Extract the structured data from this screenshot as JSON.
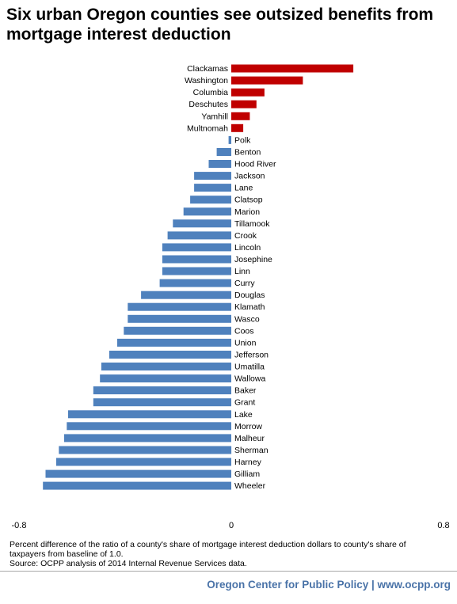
{
  "title": "Six urban Oregon counties see outsized benefits from mortgage interest deduction",
  "note_line1": "Percent difference of the ratio of a county's share of mortgage interest deduction dollars to county's share of taxpayers from baseline of 1.0.",
  "note_line2": "Source: OCPP  analysis of 2014 Internal Revenue Services data.",
  "footer": "Oregon Center for Public Policy | www.ocpp.org",
  "colors": {
    "positive": "#c00000",
    "negative": "#4f81bd"
  },
  "chart_data": {
    "type": "bar",
    "orientation": "horizontal",
    "xlim": [
      -0.8,
      0.8
    ],
    "x_ticks": [
      "-0.8",
      "0",
      "0.8"
    ],
    "grid": false,
    "categories": [
      "Clackamas",
      "Washington",
      "Columbia",
      "Deschutes",
      "Yamhill",
      "Multnomah",
      "Polk",
      "Benton",
      "Hood River",
      "Jackson",
      "Lane",
      "Clatsop",
      "Marion",
      "Tillamook",
      "Crook",
      "Lincoln",
      "Josephine",
      "Linn",
      "Curry",
      "Douglas",
      "Klamath",
      "Wasco",
      "Coos",
      "Union",
      "Jefferson",
      "Umatilla",
      "Wallowa",
      "Baker",
      "Grant",
      "Lake",
      "Morrow",
      "Malheur",
      "Sherman",
      "Harney",
      "Gilliam",
      "Wheeler"
    ],
    "values": [
      0.46,
      0.27,
      0.125,
      0.095,
      0.07,
      0.045,
      -0.01,
      -0.055,
      -0.085,
      -0.14,
      -0.14,
      -0.155,
      -0.18,
      -0.22,
      -0.24,
      -0.26,
      -0.26,
      -0.26,
      -0.27,
      -0.34,
      -0.39,
      -0.39,
      -0.405,
      -0.43,
      -0.46,
      -0.49,
      -0.495,
      -0.52,
      -0.52,
      -0.615,
      -0.62,
      -0.63,
      -0.65,
      -0.66,
      -0.7,
      -0.71
    ]
  }
}
